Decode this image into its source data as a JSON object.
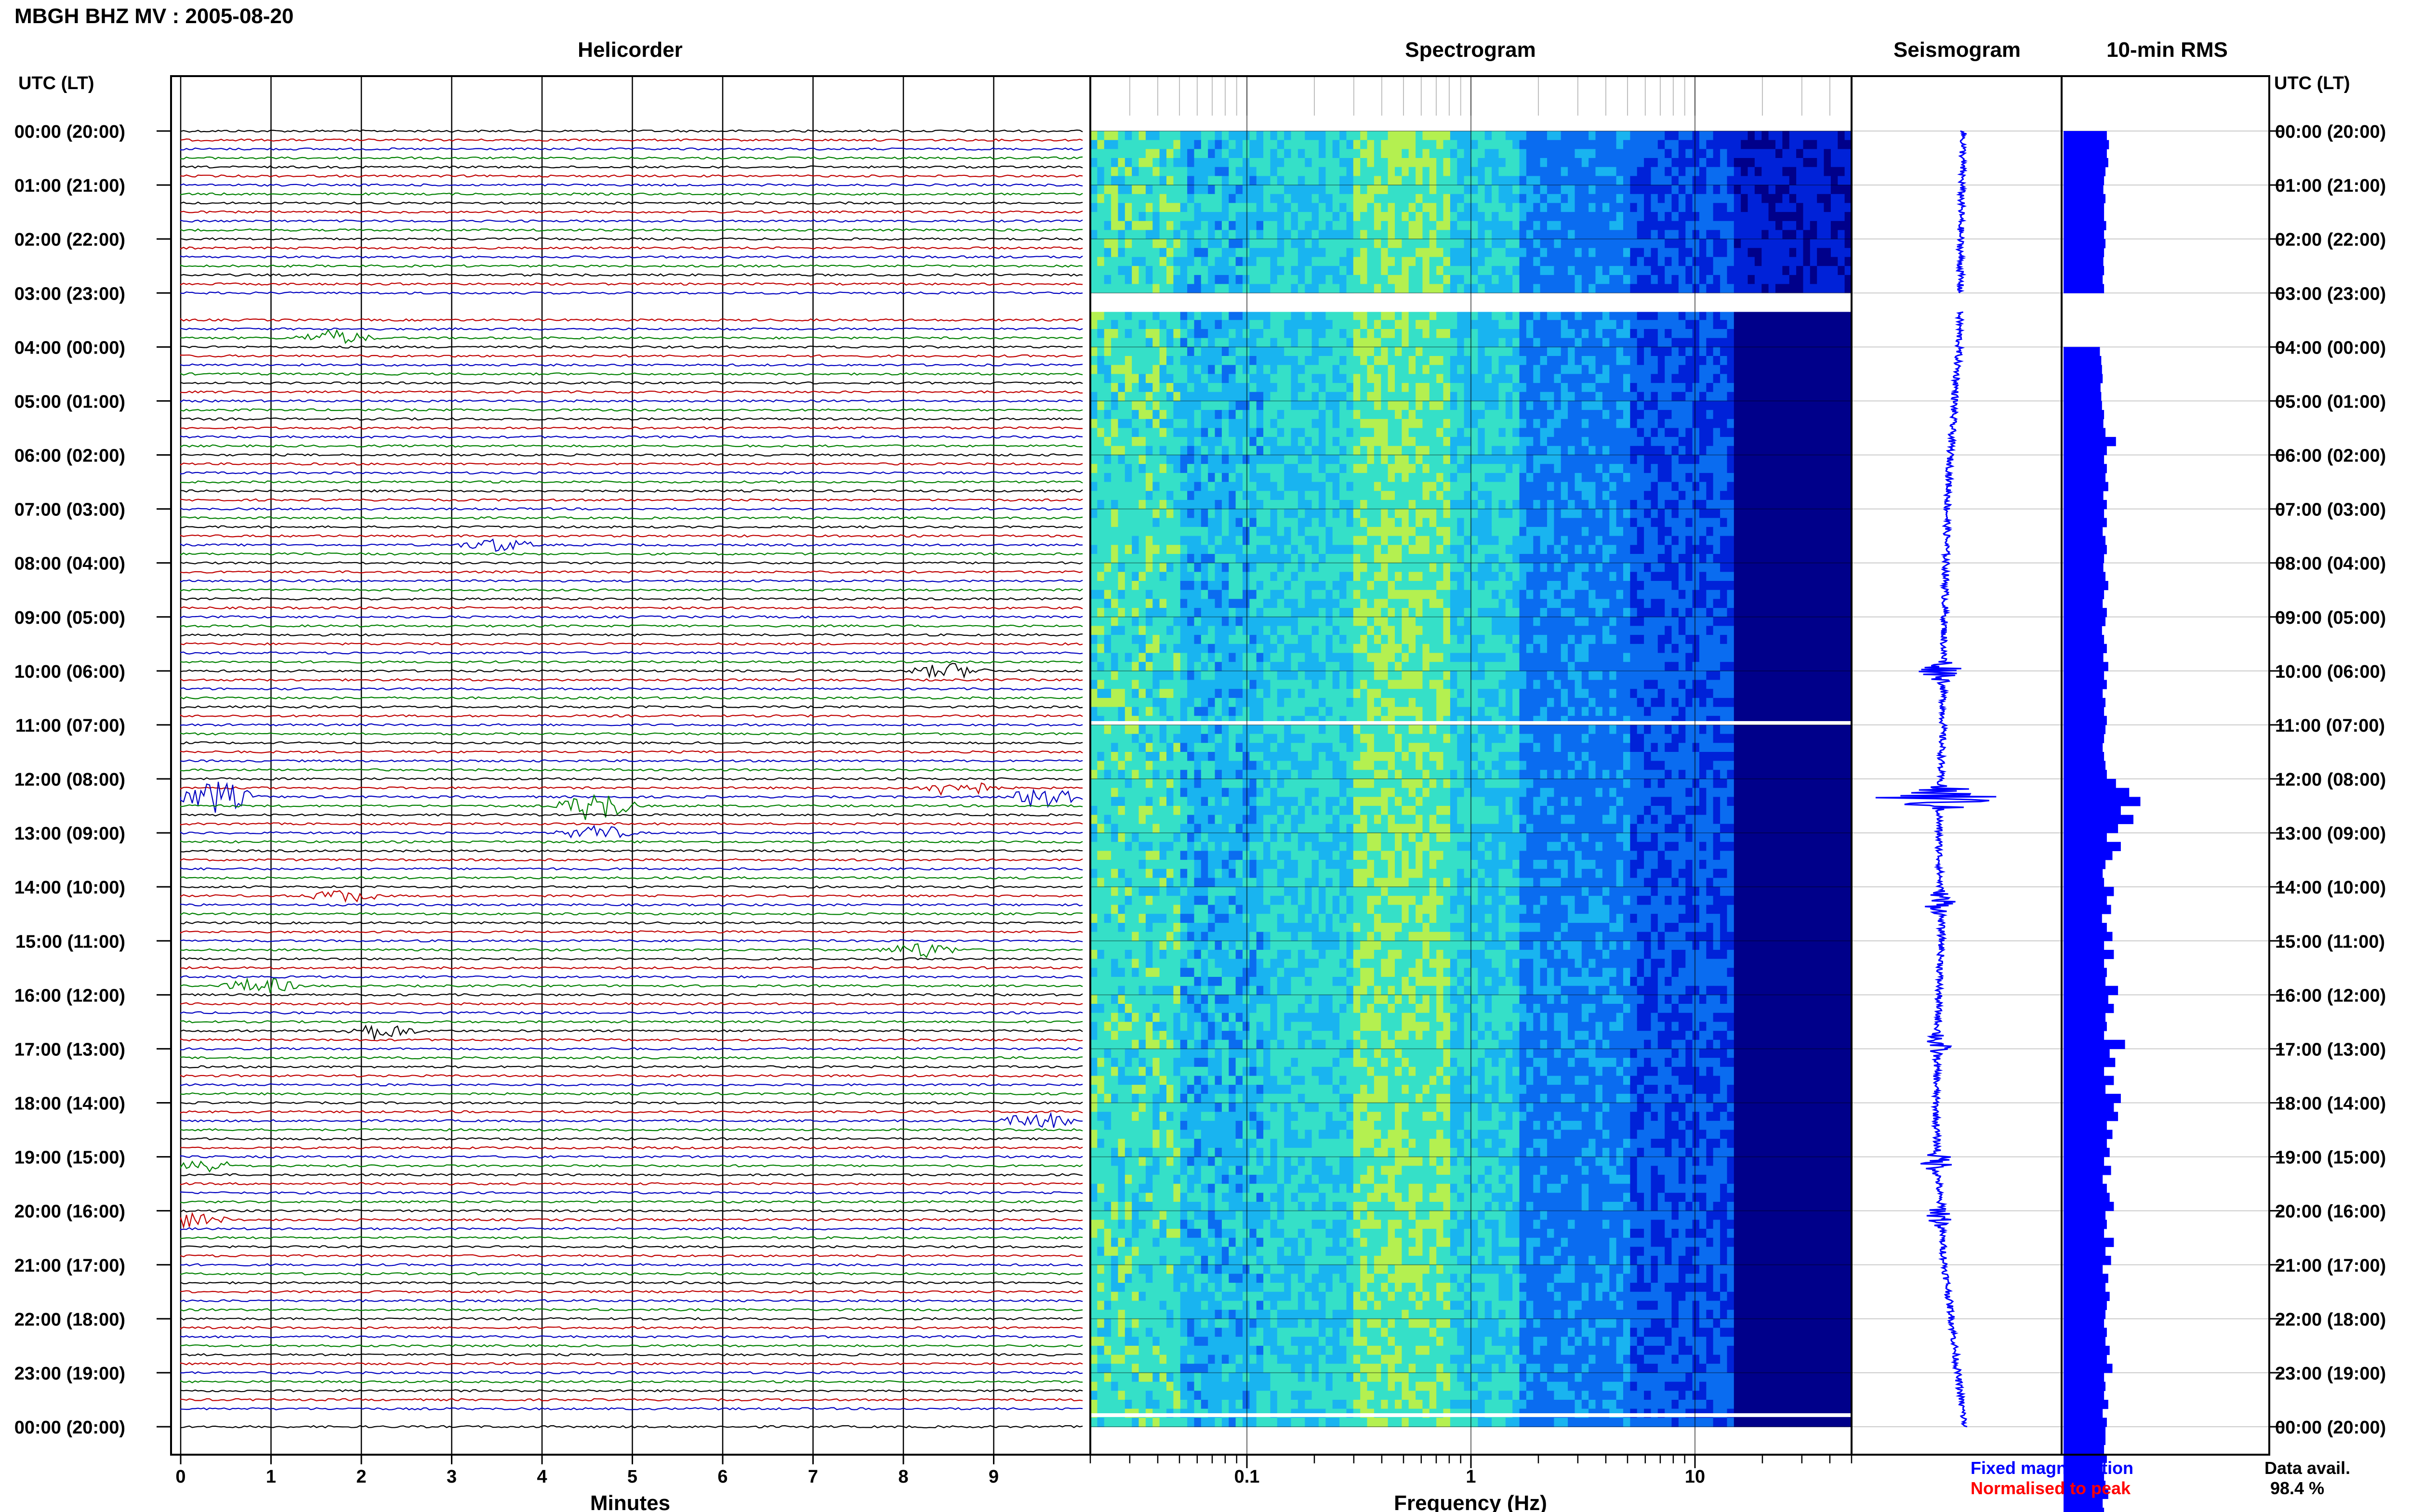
{
  "header": {
    "title": "MBGH BHZ MV : 2005-08-20"
  },
  "chart_data": [
    {
      "type": "line",
      "panel": "helicorder",
      "title": "Helicorder",
      "xlabel": "Minutes",
      "x_ticks": [
        0,
        1,
        2,
        3,
        4,
        5,
        6,
        7,
        8,
        9
      ],
      "xlim": [
        0,
        10
      ],
      "trace_colors": [
        "#000000",
        "#c00000",
        "#0000c0",
        "#008000"
      ],
      "left_axis_title": "UTC (LT)",
      "hour_labels": [
        "00:00 (20:00)",
        "01:00 (21:00)",
        "02:00 (22:00)",
        "03:00 (23:00)",
        "04:00 (00:00)",
        "05:00 (01:00)",
        "06:00 (02:00)",
        "07:00 (03:00)",
        "08:00 (04:00)",
        "09:00 (05:00)",
        "10:00 (06:00)",
        "11:00 (07:00)",
        "12:00 (08:00)",
        "13:00 (09:00)",
        "14:00 (10:00)",
        "15:00 (11:00)",
        "16:00 (12:00)",
        "17:00 (13:00)",
        "18:00 (14:00)",
        "19:00 (15:00)",
        "20:00 (16:00)",
        "21:00 (17:00)",
        "22:00 (18:00)",
        "23:00 (19:00)",
        "00:00 (20:00)"
      ],
      "events": [
        {
          "hour": 3.9,
          "minute": 1.7,
          "amp": 1.2
        },
        {
          "hour": 7.7,
          "minute": 3.5,
          "amp": 1.0
        },
        {
          "hour": 10.0,
          "minute": 8.5,
          "amp": 1.2
        },
        {
          "hour": 12.1,
          "minute": 8.6,
          "amp": 1.5
        },
        {
          "hour": 12.3,
          "minute": 0.4,
          "amp": 2.6
        },
        {
          "hour": 12.3,
          "minute": 9.6,
          "amp": 2.2
        },
        {
          "hour": 12.5,
          "minute": 4.6,
          "amp": 2.6
        },
        {
          "hour": 13.0,
          "minute": 4.6,
          "amp": 1.2
        },
        {
          "hour": 14.1,
          "minute": 1.8,
          "amp": 1.0
        },
        {
          "hour": 15.2,
          "minute": 8.2,
          "amp": 1.2
        },
        {
          "hour": 15.9,
          "minute": 0.9,
          "amp": 1.3
        },
        {
          "hour": 16.6,
          "minute": 2.2,
          "amp": 1.3
        },
        {
          "hour": 18.4,
          "minute": 9.5,
          "amp": 1.3
        },
        {
          "hour": 19.1,
          "minute": 0.2,
          "amp": 1.2
        },
        {
          "hour": 20.1,
          "minute": 0.1,
          "amp": 1.2
        }
      ]
    },
    {
      "type": "heatmap",
      "panel": "spectrogram",
      "title": "Spectrogram",
      "xlabel": "Frequency (Hz)",
      "x_scale": "log",
      "xlim": [
        0.02,
        50
      ],
      "x_tick_labels": [
        "0.1",
        "1",
        "10"
      ],
      "x_tick_values": [
        0.1,
        1,
        10
      ],
      "colormap": [
        "#00008a",
        "#0022d8",
        "#0a6cf0",
        "#19b4f0",
        "#35e0c8",
        "#b4f050"
      ],
      "gaps": [
        {
          "from_hour": 3.0,
          "to_hour": 3.35
        },
        {
          "from_hour": 10.93,
          "to_hour": 11.0
        },
        {
          "from_hour": 23.75,
          "to_hour": 23.82
        }
      ]
    },
    {
      "type": "line",
      "panel": "seismogram",
      "title": "Seismogram",
      "color": "#0000ff",
      "legend": [
        "Fixed magnification",
        "Normalised to peak"
      ],
      "legend_colors": [
        "#0000ff",
        "#ff0000"
      ],
      "offset_by_hour": [
        [
          0,
          0.0
        ],
        [
          1,
          -0.05
        ],
        [
          2,
          -0.1
        ],
        [
          3,
          -0.1
        ],
        [
          4,
          -0.15
        ],
        [
          5,
          -0.3
        ],
        [
          6,
          -0.45
        ],
        [
          7,
          -0.55
        ],
        [
          8,
          -0.6
        ],
        [
          9,
          -0.65
        ],
        [
          10,
          -0.7
        ],
        [
          11,
          -0.7
        ],
        [
          12,
          -0.8
        ],
        [
          13,
          -0.85
        ],
        [
          14,
          -0.8
        ],
        [
          15,
          -0.75
        ],
        [
          16,
          -0.85
        ],
        [
          17,
          -0.9
        ],
        [
          18,
          -0.95
        ],
        [
          19,
          -0.9
        ],
        [
          20,
          -0.8
        ],
        [
          21,
          -0.65
        ],
        [
          22,
          -0.4
        ],
        [
          23,
          -0.2
        ],
        [
          24,
          0.05
        ]
      ],
      "bursts": [
        {
          "hour": 12.35,
          "amp": 2.6
        },
        {
          "hour": 10.0,
          "amp": 0.8
        },
        {
          "hour": 14.3,
          "amp": 0.6
        },
        {
          "hour": 16.9,
          "amp": 0.5
        },
        {
          "hour": 19.1,
          "amp": 0.6
        },
        {
          "hour": 20.1,
          "amp": 0.5
        }
      ]
    },
    {
      "type": "bar",
      "panel": "rms",
      "title": "10-min RMS",
      "color": "#0000ff",
      "orientation": "horizontal",
      "bin_minutes": 10,
      "values": [
        62,
        65,
        62,
        64,
        60,
        58,
        57,
        60,
        58,
        58,
        61,
        58,
        60,
        58,
        57,
        58,
        56,
        58,
        0,
        0,
        0,
        0,
        0,
        0,
        52,
        54,
        55,
        56,
        53,
        54,
        55,
        58,
        57,
        60,
        75,
        62,
        58,
        62,
        60,
        64,
        57,
        62,
        58,
        62,
        56,
        60,
        62,
        58,
        57,
        60,
        64,
        58,
        56,
        62,
        60,
        55,
        58,
        62,
        57,
        64,
        58,
        62,
        56,
        60,
        58,
        62,
        60,
        58,
        56,
        58,
        60,
        62,
        75,
        94,
        110,
        82,
        100,
        78,
        62,
        82,
        70,
        60,
        56,
        58,
        72,
        62,
        68,
        55,
        62,
        70,
        58,
        72,
        58,
        62,
        60,
        78,
        64,
        72,
        60,
        62,
        58,
        88,
        66,
        74,
        58,
        72,
        60,
        82,
        72,
        78,
        62,
        70,
        62,
        66,
        58,
        68,
        56,
        62,
        66,
        72,
        60,
        62,
        58,
        72,
        60,
        68,
        56,
        64,
        60,
        66,
        62,
        60,
        58,
        62,
        60,
        66,
        62,
        70,
        58,
        60,
        58,
        64,
        56,
        62,
        60,
        60,
        58,
        62,
        56,
        58,
        60,
        64,
        56,
        58,
        60
      ]
    }
  ],
  "data_availability": {
    "label": "Data avail.",
    "value": "98.4 %"
  }
}
